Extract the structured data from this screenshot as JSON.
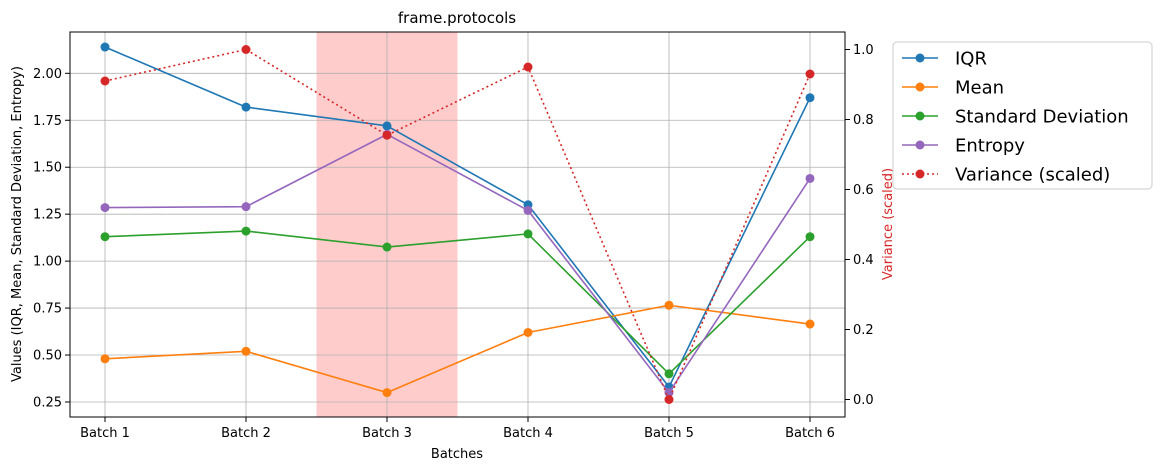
{
  "chart_data": {
    "type": "line",
    "title": "frame.protocols",
    "xlabel": "Batches",
    "ylabel": "Values (IQR, Mean, Standard Deviation, Entropy)",
    "y2label": "Variance (scaled)",
    "categories": [
      "Batch 1",
      "Batch 2",
      "Batch 3",
      "Batch 4",
      "Batch 5",
      "Batch 6"
    ],
    "ylim": [
      0.17,
      2.22
    ],
    "y2lim": [
      -0.05,
      1.05
    ],
    "yticks": [
      "0.25",
      "0.50",
      "0.75",
      "1.00",
      "1.25",
      "1.50",
      "1.75",
      "2.00"
    ],
    "y2ticks": [
      "0.0",
      "0.2",
      "0.4",
      "0.6",
      "0.8",
      "1.0"
    ],
    "highlight_span": [
      1.5,
      2.5
    ],
    "highlight_color": "#ff0000",
    "grid": true,
    "legend_placement": "outside upper right",
    "series": [
      {
        "name": "IQR",
        "axis": "left",
        "color": "#1f77b4",
        "style": "solid",
        "values": [
          2.14,
          1.82,
          1.72,
          1.3,
          0.33,
          1.87
        ]
      },
      {
        "name": "Mean",
        "axis": "left",
        "color": "#ff7f0e",
        "style": "solid",
        "values": [
          0.48,
          0.52,
          0.3,
          0.62,
          0.765,
          0.665
        ]
      },
      {
        "name": "Standard Deviation",
        "axis": "left",
        "color": "#2ca02c",
        "style": "solid",
        "values": [
          1.13,
          1.16,
          1.075,
          1.145,
          0.4,
          1.13
        ]
      },
      {
        "name": "Entropy",
        "axis": "left",
        "color": "#9467bd",
        "style": "solid",
        "values": [
          1.285,
          1.29,
          1.675,
          1.27,
          0.3,
          1.44
        ]
      },
      {
        "name": "Variance (scaled)",
        "axis": "right",
        "color": "#d62728",
        "style": "dotted",
        "values": [
          0.91,
          1.0,
          0.755,
          0.95,
          0.0,
          0.93
        ]
      }
    ]
  }
}
